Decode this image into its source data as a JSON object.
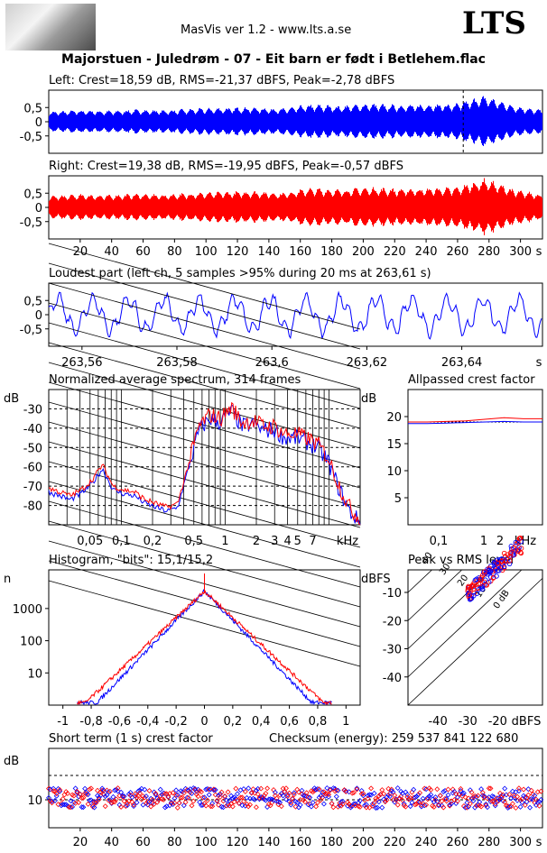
{
  "app": {
    "header": "MasVis ver 1.2 - www.lts.a.se",
    "logo_text": "LTS",
    "track_title": "Majorstuen - Juledrøm - 07 - Eit barn er født i Betlehem.flac"
  },
  "colors": {
    "left": "#0000ff",
    "right": "#ff0000",
    "axis": "#000000"
  },
  "chart_data": [
    {
      "id": "left",
      "type": "area",
      "title": "Left: Crest=18,59 dB, RMS=-21,37 dBFS, Peak=-2,78 dBFS",
      "yticks": [
        "0,5",
        "0",
        "-0,5"
      ],
      "ylim": [
        -1,
        1
      ],
      "x_range_s": [
        0,
        314
      ],
      "marker_s": 263.61,
      "envelope_description_values": [
        0.35,
        0.4,
        0.38,
        0.42,
        0.4,
        0.45,
        0.48,
        0.5,
        0.45,
        0.6,
        0.55,
        0.62,
        0.58,
        0.6,
        0.62,
        0.9,
        0.55,
        0.4
      ]
    },
    {
      "id": "right",
      "type": "area",
      "title": "Right: Crest=19,38 dB, RMS=-19,95 dBFS, Peak=-0,57 dBFS",
      "yticks": [
        "0,5",
        "0",
        "-0,5"
      ],
      "ylim": [
        -1,
        1
      ],
      "x_range_s": [
        0,
        314
      ],
      "xticks": [
        "20",
        "40",
        "60",
        "80",
        "100",
        "120",
        "140",
        "160",
        "180",
        "200",
        "220",
        "240",
        "260",
        "280",
        "300",
        "s"
      ]
    },
    {
      "id": "loudest",
      "type": "line",
      "title": "Loudest part (left  ch, 5 samples >95% during 20 ms at 263,61 s)",
      "yticks": [
        "0,5",
        "0",
        "-0,5"
      ],
      "ylim": [
        -1,
        1
      ],
      "x_range_s": [
        263.553,
        263.657
      ],
      "xticks": [
        "263,56",
        "263,58",
        "263,6",
        "263,62",
        "263,64",
        "s"
      ]
    },
    {
      "id": "spectrum",
      "type": "line",
      "title": "Normalized average spectrum, 314 frames",
      "ylabel": "dB",
      "yticks": [
        "-30",
        "-40",
        "-50",
        "-60",
        "-70",
        "-80"
      ],
      "xticks": [
        "0,05",
        "0,1",
        "0,2",
        "0,5",
        "1",
        "2",
        "3",
        "4",
        "5",
        "7",
        "kHz"
      ],
      "ylim": [
        -90,
        -20
      ],
      "xlim_khz": [
        0.02,
        20
      ],
      "series": [
        {
          "name": "",
          "values_db": [
            -72,
            -74,
            -76,
            -73,
            -68,
            -60,
            -71,
            -73,
            -74,
            -78,
            -80,
            -82,
            -80,
            -60,
            -40,
            -34,
            -36,
            -30,
            -38,
            -37,
            -40,
            -40,
            -44,
            -44,
            -46,
            -49,
            -56,
            -70,
            -82,
            -88
          ]
        }
      ]
    },
    {
      "id": "allpassed",
      "type": "line",
      "title": "Allpassed crest factor",
      "ylabel": "dB",
      "yticks": [
        "20",
        "15",
        "10",
        "5"
      ],
      "xticks": [
        "0,1",
        "1",
        "2",
        "kHz"
      ],
      "ylim": [
        0,
        25
      ],
      "series": [
        {
          "name": "",
          "values": [
            19,
            19,
            19.1,
            19.2,
            19.5,
            19.8,
            19.6,
            19.6
          ]
        },
        {
          "name": "",
          "values": [
            18.7,
            18.7,
            18.8,
            18.9,
            19.0,
            19.1,
            19.0,
            19.0
          ]
        }
      ]
    },
    {
      "id": "histogram",
      "type": "line",
      "title": "Histogram, \"bits\": 15,1/15,2",
      "ylabel": "n",
      "yticks": [
        "1000",
        "100",
        "10"
      ],
      "xticks": [
        "-1",
        "-0,8",
        "-0,6",
        "-0,4",
        "-0,2",
        "0",
        "0,2",
        "0,4",
        "0,6",
        "0,8",
        "1"
      ],
      "xlim": [
        -1.1,
        1.1
      ]
    },
    {
      "id": "peak_rms",
      "type": "scatter",
      "title": "Peak vs RMS level",
      "ylabel": "dBFS",
      "yticks": [
        "-10",
        "-20",
        "-30",
        "-40"
      ],
      "xticks": [
        "-40",
        "-30",
        "-20",
        "dBFS"
      ],
      "diag_labels": [
        "40",
        "30",
        "20",
        "10",
        "0 dB"
      ],
      "xlim": [
        -50,
        -5
      ],
      "ylim": [
        -50,
        -2
      ]
    },
    {
      "id": "short_term_crest",
      "type": "scatter",
      "title": "Short term (1 s) crest factor",
      "checksum": "Checksum (energy):   259 537 841 122 680",
      "ylabel": "dB",
      "yticks": [
        "10"
      ],
      "xticks": [
        "20",
        "40",
        "60",
        "80",
        "100",
        "120",
        "140",
        "160",
        "180",
        "200",
        "220",
        "240",
        "260",
        "280",
        "300",
        "s"
      ],
      "x_range_s": [
        0,
        314
      ]
    }
  ]
}
